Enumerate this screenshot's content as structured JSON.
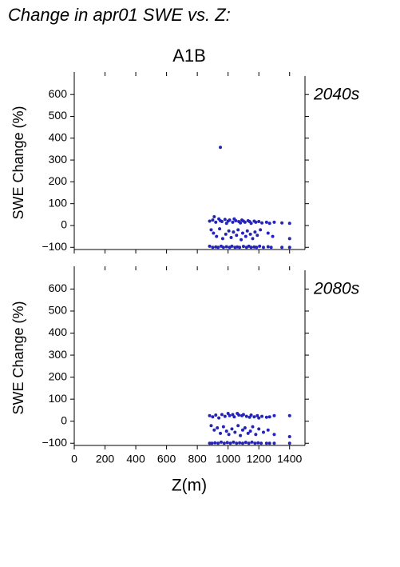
{
  "chart_data": [
    {
      "type": "scatter",
      "title": "Change in apr01 SWE vs. Z:",
      "subtitle": "A1B",
      "label": "2040s",
      "ylabel": "SWE Change (%)",
      "color": "#2424b8",
      "label_color": "#2424b8",
      "xlim": [
        0,
        1500
      ],
      "xticks": [
        0,
        200,
        400,
        600,
        800,
        1000,
        1200,
        1400
      ],
      "ylim": [
        -110,
        685
      ],
      "yticks": [
        {
          "value": -100,
          "label": "−100"
        },
        0,
        100,
        200,
        300,
        400,
        500,
        600
      ],
      "x": [
        880,
        900,
        910,
        920,
        940,
        950,
        960,
        980,
        990,
        1000,
        1010,
        1030,
        1040,
        1050,
        1070,
        1080,
        1090,
        1100,
        1110,
        1130,
        1140,
        1150,
        1170,
        1180,
        1200,
        1220,
        1250,
        1270,
        1300,
        1350,
        1400,
        890,
        905,
        925,
        945,
        965,
        985,
        1005,
        1020,
        1035,
        1055,
        1065,
        1085,
        1095,
        1115,
        1125,
        1145,
        1160,
        1175,
        1190,
        1210,
        1260,
        1290,
        1400,
        880,
        900,
        920,
        935,
        955,
        970,
        990,
        1010,
        1025,
        1045,
        1060,
        1075,
        1100,
        1120,
        1135,
        1150,
        1170,
        1185,
        1205,
        1230,
        1260,
        1280,
        1350,
        1400,
        950
      ],
      "values": [
        20,
        25,
        40,
        15,
        30,
        22,
        18,
        28,
        10,
        20,
        25,
        15,
        30,
        22,
        18,
        12,
        25,
        20,
        15,
        22,
        18,
        10,
        20,
        15,
        18,
        12,
        15,
        10,
        15,
        12,
        10,
        -20,
        -35,
        -50,
        -15,
        -60,
        -40,
        -25,
        -55,
        -30,
        -45,
        -20,
        -65,
        -35,
        -50,
        -25,
        -40,
        -60,
        -30,
        -45,
        -20,
        -35,
        -50,
        -60,
        -95,
        -100,
        -98,
        -100,
        -95,
        -100,
        -97,
        -100,
        -95,
        -100,
        -98,
        -100,
        -96,
        -100,
        -95,
        -100,
        -98,
        -100,
        -95,
        -100,
        -97,
        -100,
        -100,
        -100,
        358
      ]
    },
    {
      "type": "scatter",
      "label": "2080s",
      "ylabel": "SWE Change (%)",
      "xlabel": "Z(m)",
      "color": "#2424b8",
      "label_color": "#2424b8",
      "xlim": [
        0,
        1500
      ],
      "xticks": [
        0,
        200,
        400,
        600,
        800,
        1000,
        1200,
        1400
      ],
      "ylim": [
        -110,
        685
      ],
      "yticks": [
        {
          "value": -100,
          "label": "−100"
        },
        0,
        100,
        200,
        300,
        400,
        500,
        600
      ],
      "x": [
        880,
        900,
        920,
        940,
        960,
        980,
        1000,
        1010,
        1030,
        1040,
        1060,
        1070,
        1090,
        1100,
        1120,
        1140,
        1150,
        1170,
        1190,
        1200,
        1220,
        1250,
        1270,
        1300,
        1400,
        890,
        910,
        930,
        950,
        970,
        990,
        1005,
        1025,
        1045,
        1065,
        1080,
        1095,
        1110,
        1130,
        1145,
        1160,
        1180,
        1200,
        1230,
        1260,
        1300,
        1400,
        880,
        895,
        915,
        935,
        955,
        975,
        995,
        1015,
        1035,
        1055,
        1075,
        1095,
        1115,
        1135,
        1155,
        1175,
        1195,
        1215,
        1250,
        1270,
        1300,
        1400
      ],
      "values": [
        25,
        20,
        28,
        15,
        30,
        22,
        35,
        25,
        30,
        20,
        35,
        28,
        25,
        30,
        22,
        18,
        28,
        20,
        25,
        15,
        22,
        18,
        20,
        25,
        25,
        -20,
        -40,
        -30,
        -55,
        -25,
        -45,
        -60,
        -35,
        -50,
        -20,
        -65,
        -40,
        -30,
        -55,
        -45,
        -25,
        -60,
        -35,
        -50,
        -40,
        -60,
        -70,
        -100,
        -100,
        -98,
        -100,
        -95,
        -100,
        -97,
        -100,
        -95,
        -100,
        -98,
        -100,
        -96,
        -100,
        -95,
        -100,
        -98,
        -100,
        -100,
        -100,
        -100,
        -100
      ]
    }
  ]
}
